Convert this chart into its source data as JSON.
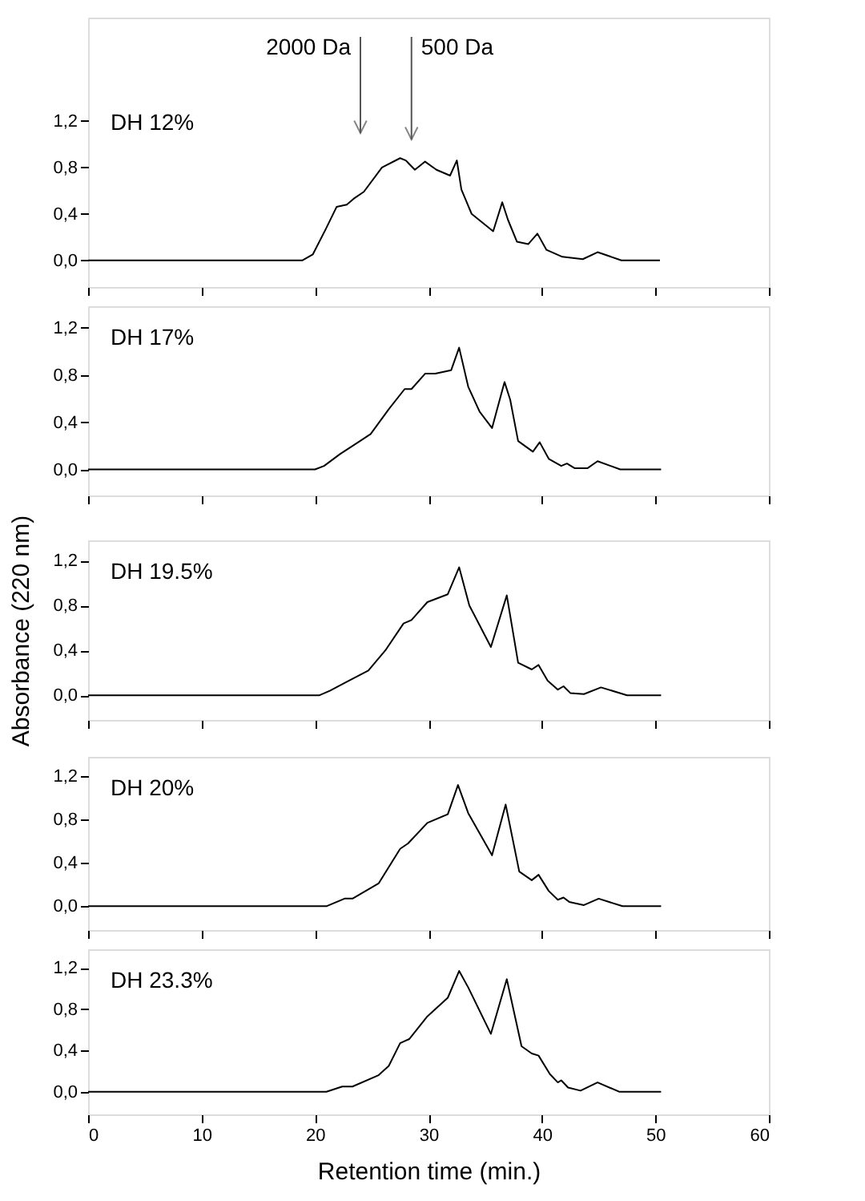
{
  "chart_data": [
    {
      "type": "line",
      "title": "DH 12%",
      "xlim": [
        0,
        60
      ],
      "ylim": [
        -0.23,
        2.09
      ],
      "xticks": [
        0,
        10,
        20,
        30,
        40,
        50,
        60
      ],
      "yticks": [
        {
          "value": 0,
          "label": "0,0"
        },
        {
          "value": 0.4,
          "label": "0,4"
        },
        {
          "value": 0.8,
          "label": "0,8"
        },
        {
          "value": 1.2,
          "label": "1,2"
        }
      ],
      "tick_labels": "y",
      "grid": false,
      "annotations": [
        "2000 Da",
        "500 Da"
      ],
      "series": [
        {
          "color": "#000000",
          "x": [
            0,
            18.9,
            19.8,
            20.95,
            21.9,
            22.8,
            23.4,
            24.3,
            25.9,
            27.5,
            28.0,
            28.8,
            29.7,
            30.7,
            31.9,
            32.5,
            32.9,
            33.8,
            35.7,
            36.5,
            37.0,
            37.8,
            38.8,
            39.6,
            40.4,
            41.8,
            43.6,
            44.9,
            47.0,
            50.4
          ],
          "values": [
            0,
            0,
            0.05,
            0.27,
            0.46,
            0.48,
            0.53,
            0.59,
            0.8,
            0.88,
            0.86,
            0.78,
            0.85,
            0.78,
            0.73,
            0.86,
            0.61,
            0.4,
            0.25,
            0.5,
            0.35,
            0.16,
            0.14,
            0.23,
            0.09,
            0.03,
            0.01,
            0.07,
            0,
            0
          ]
        }
      ]
    },
    {
      "type": "line",
      "title": "DH 17%",
      "xlim": [
        0,
        60
      ],
      "ylim": [
        -0.22,
        1.38
      ],
      "xticks": [
        0,
        10,
        20,
        30,
        40,
        50,
        60
      ],
      "yticks": [
        {
          "value": 0,
          "label": "0,0"
        },
        {
          "value": 0.4,
          "label": "0,4"
        },
        {
          "value": 0.8,
          "label": "0,8"
        },
        {
          "value": 1.2,
          "label": "1,2"
        }
      ],
      "tick_labels": "y",
      "grid": false,
      "series": [
        {
          "color": "#000000",
          "x": [
            0,
            20,
            20.8,
            22.2,
            23.8,
            24.9,
            26.5,
            27.9,
            28.5,
            29.7,
            30.6,
            32.0,
            32.7,
            33.5,
            34.5,
            35.6,
            36.7,
            37.2,
            37.9,
            39.2,
            39.8,
            40.6,
            41.7,
            42.2,
            42.9,
            44.0,
            44.9,
            46.9,
            50.5
          ],
          "values": [
            0,
            0,
            0.03,
            0.13,
            0.23,
            0.3,
            0.51,
            0.68,
            0.68,
            0.81,
            0.81,
            0.84,
            1.03,
            0.7,
            0.49,
            0.35,
            0.74,
            0.59,
            0.24,
            0.15,
            0.23,
            0.09,
            0.03,
            0.05,
            0.01,
            0.01,
            0.07,
            0,
            0
          ]
        }
      ]
    },
    {
      "type": "line",
      "title": "DH 19.5%",
      "ylabel": "Absorbance (220 nm)",
      "xlim": [
        0,
        60
      ],
      "ylim": [
        -0.22,
        1.38
      ],
      "xticks": [
        0,
        10,
        20,
        30,
        40,
        50,
        60
      ],
      "yticks": [
        {
          "value": 0,
          "label": "0,0"
        },
        {
          "value": 0.4,
          "label": "0,4"
        },
        {
          "value": 0.8,
          "label": "0,8"
        },
        {
          "value": 1.2,
          "label": "1,2"
        }
      ],
      "tick_labels": "y",
      "grid": false,
      "series": [
        {
          "color": "#000000",
          "x": [
            0,
            20.4,
            21.3,
            22.6,
            24.7,
            26.2,
            27.8,
            28.5,
            29.9,
            31.7,
            32.7,
            33.6,
            35.5,
            36.9,
            37.9,
            39.1,
            39.7,
            40.5,
            41.4,
            41.9,
            42.5,
            43.7,
            45.2,
            47.5,
            50.5
          ],
          "values": [
            0,
            0,
            0.04,
            0.11,
            0.22,
            0.4,
            0.64,
            0.67,
            0.83,
            0.9,
            1.14,
            0.8,
            0.43,
            0.89,
            0.29,
            0.23,
            0.27,
            0.13,
            0.05,
            0.08,
            0.02,
            0.01,
            0.07,
            0,
            0
          ]
        }
      ]
    },
    {
      "type": "line",
      "title": "DH  20%",
      "xlim": [
        0,
        60
      ],
      "ylim": [
        -0.22,
        1.38
      ],
      "xticks": [
        0,
        10,
        20,
        30,
        40,
        50,
        60
      ],
      "yticks": [
        {
          "value": 0,
          "label": "0,0"
        },
        {
          "value": 0.4,
          "label": "0,4"
        },
        {
          "value": 0.8,
          "label": "0,8"
        },
        {
          "value": 1.2,
          "label": "1,2"
        }
      ],
      "tick_labels": "y",
      "grid": false,
      "series": [
        {
          "color": "#000000",
          "x": [
            0,
            21,
            22.6,
            23.3,
            25.6,
            27.5,
            28.2,
            29.9,
            31.7,
            32.6,
            33.5,
            35.6,
            36.8,
            38.0,
            39.1,
            39.7,
            40.6,
            41.4,
            41.9,
            42.4,
            43.7,
            45.0,
            47.1,
            50.5
          ],
          "values": [
            0,
            0,
            0.07,
            0.07,
            0.21,
            0.53,
            0.58,
            0.77,
            0.85,
            1.12,
            0.86,
            0.47,
            0.94,
            0.32,
            0.24,
            0.29,
            0.14,
            0.06,
            0.08,
            0.04,
            0.01,
            0.07,
            0,
            0
          ]
        }
      ]
    },
    {
      "type": "line",
      "title": "DH 23.3%",
      "xlabel": "Retention time (min.)",
      "xlim": [
        0,
        60
      ],
      "ylim": [
        -0.22,
        1.38
      ],
      "xticks": [
        0,
        10,
        20,
        30,
        40,
        50,
        60
      ],
      "yticks": [
        {
          "value": 0,
          "label": "0,0"
        },
        {
          "value": 0.4,
          "label": "0,4"
        },
        {
          "value": 0.8,
          "label": "0,8"
        },
        {
          "value": 1.2,
          "label": "1,2"
        }
      ],
      "grid": false,
      "series": [
        {
          "color": "#000000",
          "x": [
            0,
            21,
            22.4,
            23.3,
            25.6,
            26.5,
            27.5,
            28.3,
            29.9,
            31.7,
            32.7,
            33.5,
            35.5,
            36.9,
            38.2,
            39.1,
            39.7,
            40.7,
            41.4,
            41.7,
            42.3,
            43.4,
            44.9,
            46.8,
            50.5
          ],
          "values": [
            0,
            0,
            0.05,
            0.05,
            0.16,
            0.25,
            0.47,
            0.51,
            0.73,
            0.91,
            1.17,
            1.01,
            0.56,
            1.09,
            0.44,
            0.37,
            0.35,
            0.17,
            0.09,
            0.11,
            0.04,
            0.01,
            0.09,
            0,
            0
          ]
        }
      ]
    }
  ]
}
